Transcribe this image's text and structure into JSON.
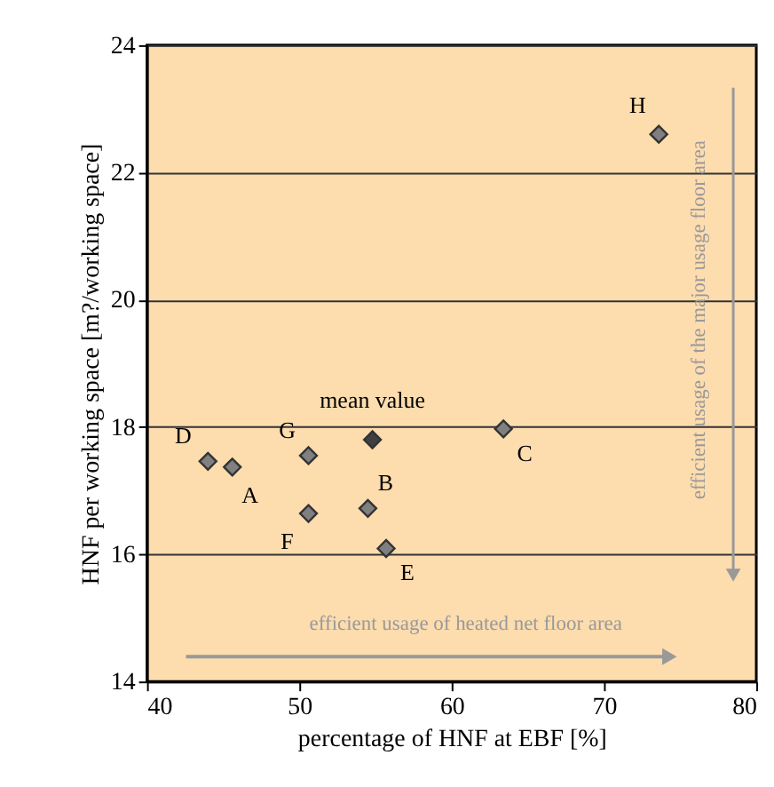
{
  "chart_data": {
    "type": "scatter",
    "xlabel": "percentage of HNF at EBF [%]",
    "ylabel": "HNF per working space [m?/working space]",
    "xlim": [
      40,
      80
    ],
    "xticks": [
      40,
      50,
      60,
      70,
      80
    ],
    "ylim": [
      14,
      24
    ],
    "yticks": [
      14,
      16,
      18,
      20,
      22,
      24
    ],
    "grid": "y",
    "legend": false,
    "marker": "diamond",
    "series": [
      {
        "name": "A",
        "color": "#808080",
        "x": [
          45.6
        ],
        "values": [
          17.37
        ]
      },
      {
        "name": "B",
        "color": "#808080",
        "x": [
          54.5
        ],
        "values": [
          16.72
        ]
      },
      {
        "name": "C",
        "color": "#808080",
        "x": [
          63.4
        ],
        "values": [
          17.97
        ]
      },
      {
        "name": "D",
        "color": "#808080",
        "x": [
          44.0
        ],
        "values": [
          17.46
        ]
      },
      {
        "name": "E",
        "color": "#808080",
        "x": [
          55.7
        ],
        "values": [
          16.09
        ]
      },
      {
        "name": "F",
        "color": "#808080",
        "x": [
          50.6
        ],
        "values": [
          16.64
        ]
      },
      {
        "name": "G",
        "color": "#808080",
        "x": [
          50.6
        ],
        "values": [
          17.55
        ]
      },
      {
        "name": "H",
        "color": "#808080",
        "x": [
          73.6
        ],
        "values": [
          22.6
        ]
      },
      {
        "name": "mean value",
        "color": "#404040",
        "x": [
          54.8
        ],
        "values": [
          17.8
        ]
      }
    ],
    "annotations": [
      "efficient usage of heated net floor area",
      "efficient usage of the major usage floor area"
    ]
  }
}
